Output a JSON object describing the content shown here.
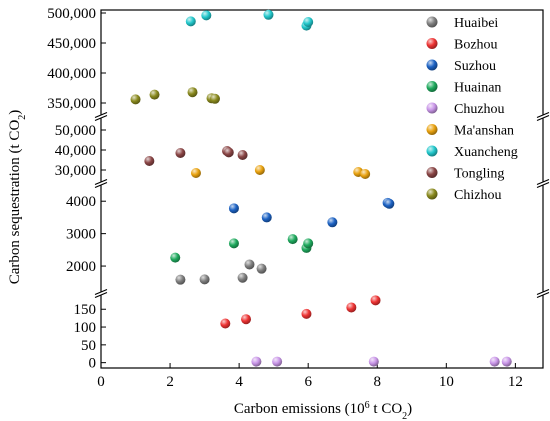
{
  "chart_data": {
    "type": "scatter",
    "xlabel": {
      "main": "Carbon emissions (10",
      "sup": "6",
      "unit": " t CO",
      "sub": "2",
      "close": ")"
    },
    "ylabel": {
      "main": "Carbon sequestration (t CO",
      "sub": "2",
      "close": ")"
    },
    "xlim": [
      0,
      12.8
    ],
    "xticks": [
      0,
      2,
      4,
      6,
      8,
      10,
      12
    ],
    "y_axis_break": true,
    "y_segments": [
      {
        "range": [
          330000,
          505000
        ],
        "ticks": [
          350000,
          400000,
          450000,
          500000
        ]
      },
      {
        "range": [
          24000,
          56000
        ],
        "ticks": [
          30000,
          40000,
          50000
        ]
      },
      {
        "range": [
          1200,
          4500
        ],
        "ticks": [
          2000,
          3000,
          4000
        ]
      },
      {
        "range": [
          -15,
          190
        ],
        "ticks": [
          0,
          50,
          100,
          150
        ]
      }
    ],
    "tick_labels": {
      "x": [
        "0",
        "2",
        "4",
        "6",
        "8",
        "10",
        "12"
      ],
      "y": [
        "350,000",
        "400,000",
        "450,000",
        "500,000",
        "30,000",
        "40,000",
        "50,000",
        "2000",
        "3000",
        "4000",
        "0",
        "50",
        "100",
        "150"
      ]
    },
    "legend_position": "top-right",
    "series": [
      {
        "name": "Huaibei",
        "color": "#7f7f7f",
        "points": [
          [
            2.3,
            1580
          ],
          [
            3.0,
            1590
          ],
          [
            4.1,
            1640
          ],
          [
            4.3,
            2050
          ],
          [
            4.65,
            1920
          ]
        ]
      },
      {
        "name": "Bozhou",
        "color": "#ee3333",
        "points": [
          [
            3.6,
            110
          ],
          [
            4.2,
            122
          ],
          [
            5.95,
            137
          ],
          [
            7.25,
            155
          ],
          [
            7.95,
            175
          ]
        ]
      },
      {
        "name": "Suzhou",
        "color": "#1c62c4",
        "points": [
          [
            3.85,
            3780
          ],
          [
            4.8,
            3500
          ],
          [
            6.7,
            3350
          ],
          [
            8.3,
            3950
          ],
          [
            8.35,
            3920
          ]
        ]
      },
      {
        "name": "Huainan",
        "color": "#1faa5e",
        "points": [
          [
            2.15,
            2260
          ],
          [
            3.85,
            2700
          ],
          [
            5.55,
            2830
          ],
          [
            5.95,
            2560
          ],
          [
            6.0,
            2700
          ]
        ]
      },
      {
        "name": "Chuzhou",
        "color": "#c996e8",
        "points": [
          [
            4.5,
            3
          ],
          [
            5.1,
            3
          ],
          [
            7.9,
            3
          ],
          [
            11.4,
            3
          ],
          [
            11.75,
            3
          ]
        ]
      },
      {
        "name": "Ma'anshan",
        "color": "#e9a20f",
        "points": [
          [
            2.75,
            28500
          ],
          [
            4.6,
            30000
          ],
          [
            7.45,
            29000
          ],
          [
            7.65,
            28000
          ]
        ]
      },
      {
        "name": "Xuancheng",
        "color": "#22c8cc",
        "points": [
          [
            2.6,
            486000
          ],
          [
            3.05,
            496000
          ],
          [
            4.85,
            497000
          ],
          [
            5.95,
            479000
          ],
          [
            6.0,
            485000
          ]
        ]
      },
      {
        "name": "Tongling",
        "color": "#8a4545",
        "points": [
          [
            1.4,
            34500
          ],
          [
            2.3,
            38500
          ],
          [
            3.65,
            39500
          ],
          [
            3.7,
            38800
          ],
          [
            4.1,
            37500
          ]
        ]
      },
      {
        "name": "Chizhou",
        "color": "#8a8a1e",
        "points": [
          [
            1.0,
            356000
          ],
          [
            1.55,
            364000
          ],
          [
            2.65,
            368000
          ],
          [
            3.2,
            358000
          ],
          [
            3.3,
            357000
          ]
        ]
      }
    ]
  }
}
